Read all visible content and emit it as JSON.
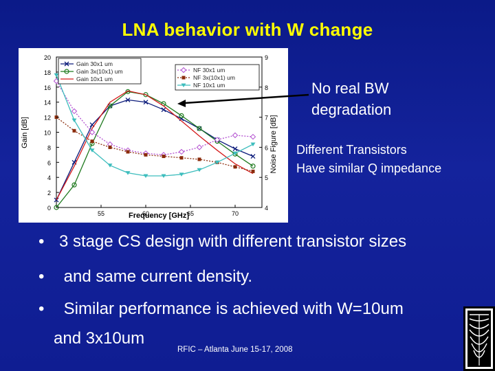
{
  "slide": {
    "title": "LNA behavior with W change",
    "callout_a": [
      "No real BW",
      "degradation"
    ],
    "callout_b": [
      "Different Transistors",
      "Have similar Q impedance"
    ],
    "bullet_symbol": "•",
    "bullets": [
      "3 stage CS design with different transistor sizes",
      " and same current density.",
      " Similar performance is achieved with W=10um"
    ],
    "bullet3_cont": "and  3x10um",
    "footer": "RFIC – Atlanta June 15-17, 2008"
  },
  "colors": {
    "background": "#13219a",
    "title": "#ffff00",
    "text": "#ffffff",
    "gain_30": "#0a1a7a",
    "gain_3x10": "#1f7a1f",
    "gain_10": "#d41a1a",
    "nf_30": "#b24fd0",
    "nf_3x10": "#8b2c0c",
    "nf_10": "#3dbdbd"
  },
  "chart_data": {
    "type": "line",
    "xlabel": "Frequency [GHz]",
    "ylabel": "Gain [dB]",
    "y2label": "Noise Figure [dB]",
    "xlim": [
      50,
      73
    ],
    "ylim": [
      0,
      20
    ],
    "y2lim": [
      4,
      9
    ],
    "x_ticks": [
      "55",
      "60",
      "65",
      "70"
    ],
    "y_ticks": [
      "0",
      "2",
      "4",
      "6",
      "8",
      "10",
      "12",
      "14",
      "16",
      "18",
      "20"
    ],
    "y2_ticks": [
      "4",
      "5",
      "6",
      "7",
      "8",
      "9"
    ],
    "legend_gain": [
      "Gain 30x1 um",
      "Gain 3x(10x1) um",
      "Gain 10x1 um"
    ],
    "legend_nf": [
      "NF 30x1 um",
      "NF 3x(10x1) um",
      "NF 10x1 um"
    ],
    "legend_placement": [
      "top-left",
      "top-center"
    ],
    "x": [
      50,
      52,
      54,
      56,
      58,
      60,
      62,
      64,
      66,
      68,
      70,
      72
    ],
    "series": [
      {
        "name": "Gain 30x1 um",
        "axis": "left",
        "values": [
          1.0,
          6.0,
          11.0,
          13.5,
          14.3,
          14.0,
          13.0,
          11.8,
          10.5,
          9.0,
          7.8,
          6.8
        ]
      },
      {
        "name": "Gain 3x(10x1) um",
        "axis": "left",
        "values": [
          0.0,
          3.0,
          8.5,
          13.5,
          15.4,
          15.0,
          13.8,
          12.2,
          10.5,
          8.8,
          7.1,
          5.5
        ]
      },
      {
        "name": "Gain 10x1 um",
        "axis": "left",
        "values": [
          1.0,
          5.5,
          10.5,
          14.0,
          15.5,
          15.0,
          13.5,
          11.5,
          9.5,
          7.6,
          5.8,
          4.5
        ]
      },
      {
        "name": "NF 30x1 um",
        "axis": "right",
        "values": [
          8.2,
          7.2,
          6.5,
          6.1,
          5.9,
          5.8,
          5.75,
          5.85,
          6.0,
          6.25,
          6.4,
          6.35
        ]
      },
      {
        "name": "NF 3x(10x1) um",
        "axis": "right",
        "values": [
          7.0,
          6.55,
          6.2,
          6.0,
          5.85,
          5.75,
          5.7,
          5.65,
          5.6,
          5.5,
          5.35,
          5.2
        ]
      },
      {
        "name": "NF 10x1 um",
        "axis": "right",
        "values": [
          8.4,
          6.9,
          5.9,
          5.4,
          5.15,
          5.05,
          5.05,
          5.1,
          5.25,
          5.5,
          5.8,
          6.1
        ]
      }
    ]
  }
}
